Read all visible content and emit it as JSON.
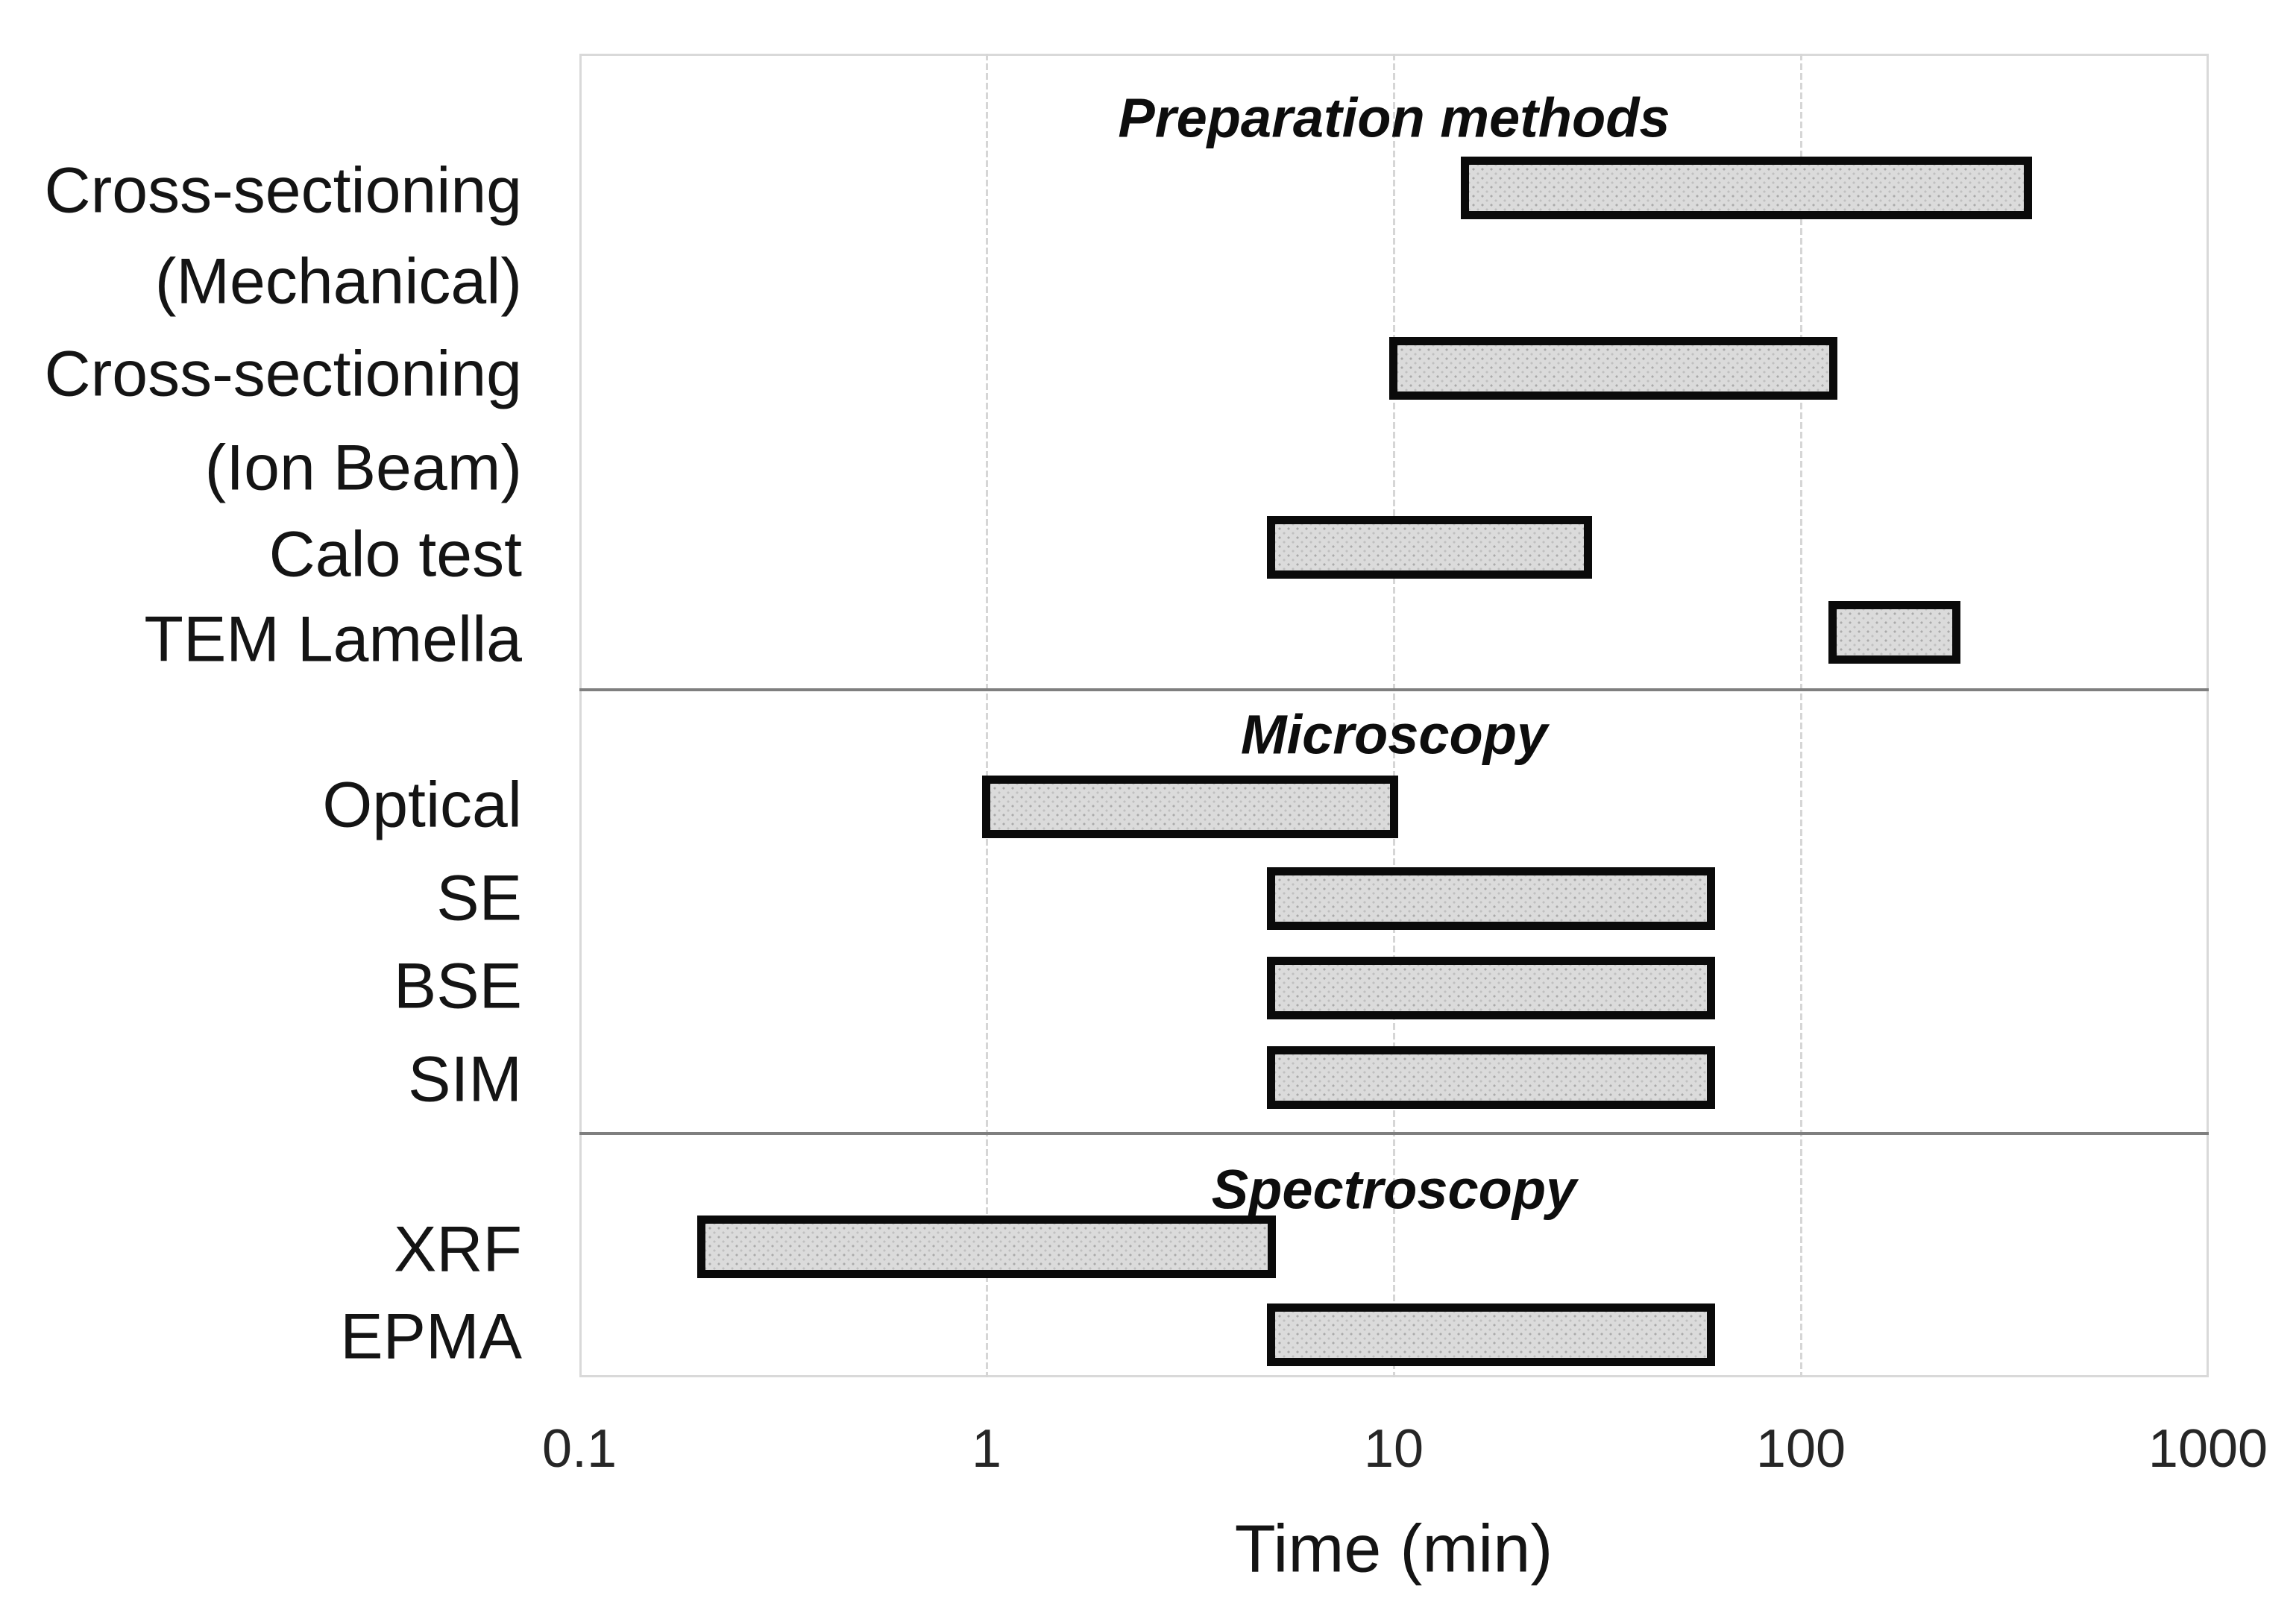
{
  "chart_data": {
    "type": "bar",
    "subtype": "horizontal-range",
    "title": "",
    "xlabel": "Time (min)",
    "x_axis": {
      "label": "Time (min)",
      "scale": "log",
      "range": [
        0.1,
        1000
      ],
      "ticks": [
        0.1,
        1,
        10,
        100,
        1000
      ],
      "tick_labels": [
        "0.1",
        "1",
        "10",
        "100",
        "1000"
      ],
      "grid": true
    },
    "sections": [
      {
        "title": "Preparation methods",
        "rows": [
          {
            "label": "Cross-sectioning (Mechanical)",
            "label_lines": [
              "Cross-sectioning",
              "(Mechanical)"
            ],
            "start_min": 15,
            "end_min": 360
          },
          {
            "label": "Cross-sectioning (Ion Beam)",
            "label_lines": [
              "Cross-sectioning",
              "(Ion Beam)"
            ],
            "start_min": 10,
            "end_min": 120
          },
          {
            "label": "Calo test",
            "label_lines": [
              "Calo test"
            ],
            "start_min": 5,
            "end_min": 30
          },
          {
            "label": "TEM Lamella",
            "label_lines": [
              "TEM Lamella"
            ],
            "start_min": 120,
            "end_min": 240
          }
        ]
      },
      {
        "title": "Microscopy",
        "rows": [
          {
            "label": "Optical",
            "label_lines": [
              "Optical"
            ],
            "start_min": 1,
            "end_min": 10
          },
          {
            "label": "SE",
            "label_lines": [
              "SE"
            ],
            "start_min": 5,
            "end_min": 60
          },
          {
            "label": "BSE",
            "label_lines": [
              "BSE"
            ],
            "start_min": 5,
            "end_min": 60
          },
          {
            "label": "SIM",
            "label_lines": [
              "SIM"
            ],
            "start_min": 5,
            "end_min": 60
          }
        ]
      },
      {
        "title": "Spectroscopy",
        "rows": [
          {
            "label": "XRF",
            "label_lines": [
              "XRF"
            ],
            "start_min": 0.2,
            "end_min": 5
          },
          {
            "label": "EPMA",
            "label_lines": [
              "EPMA"
            ],
            "start_min": 5,
            "end_min": 60
          }
        ]
      }
    ],
    "legend": null,
    "colors": {
      "bar_fill": "#dbdbdb",
      "bar_border": "#0a0a0a",
      "gridline": "#d9d9d9",
      "section_separator": "#7f7f7f",
      "text": "#141414",
      "background": "#ffffff"
    }
  }
}
